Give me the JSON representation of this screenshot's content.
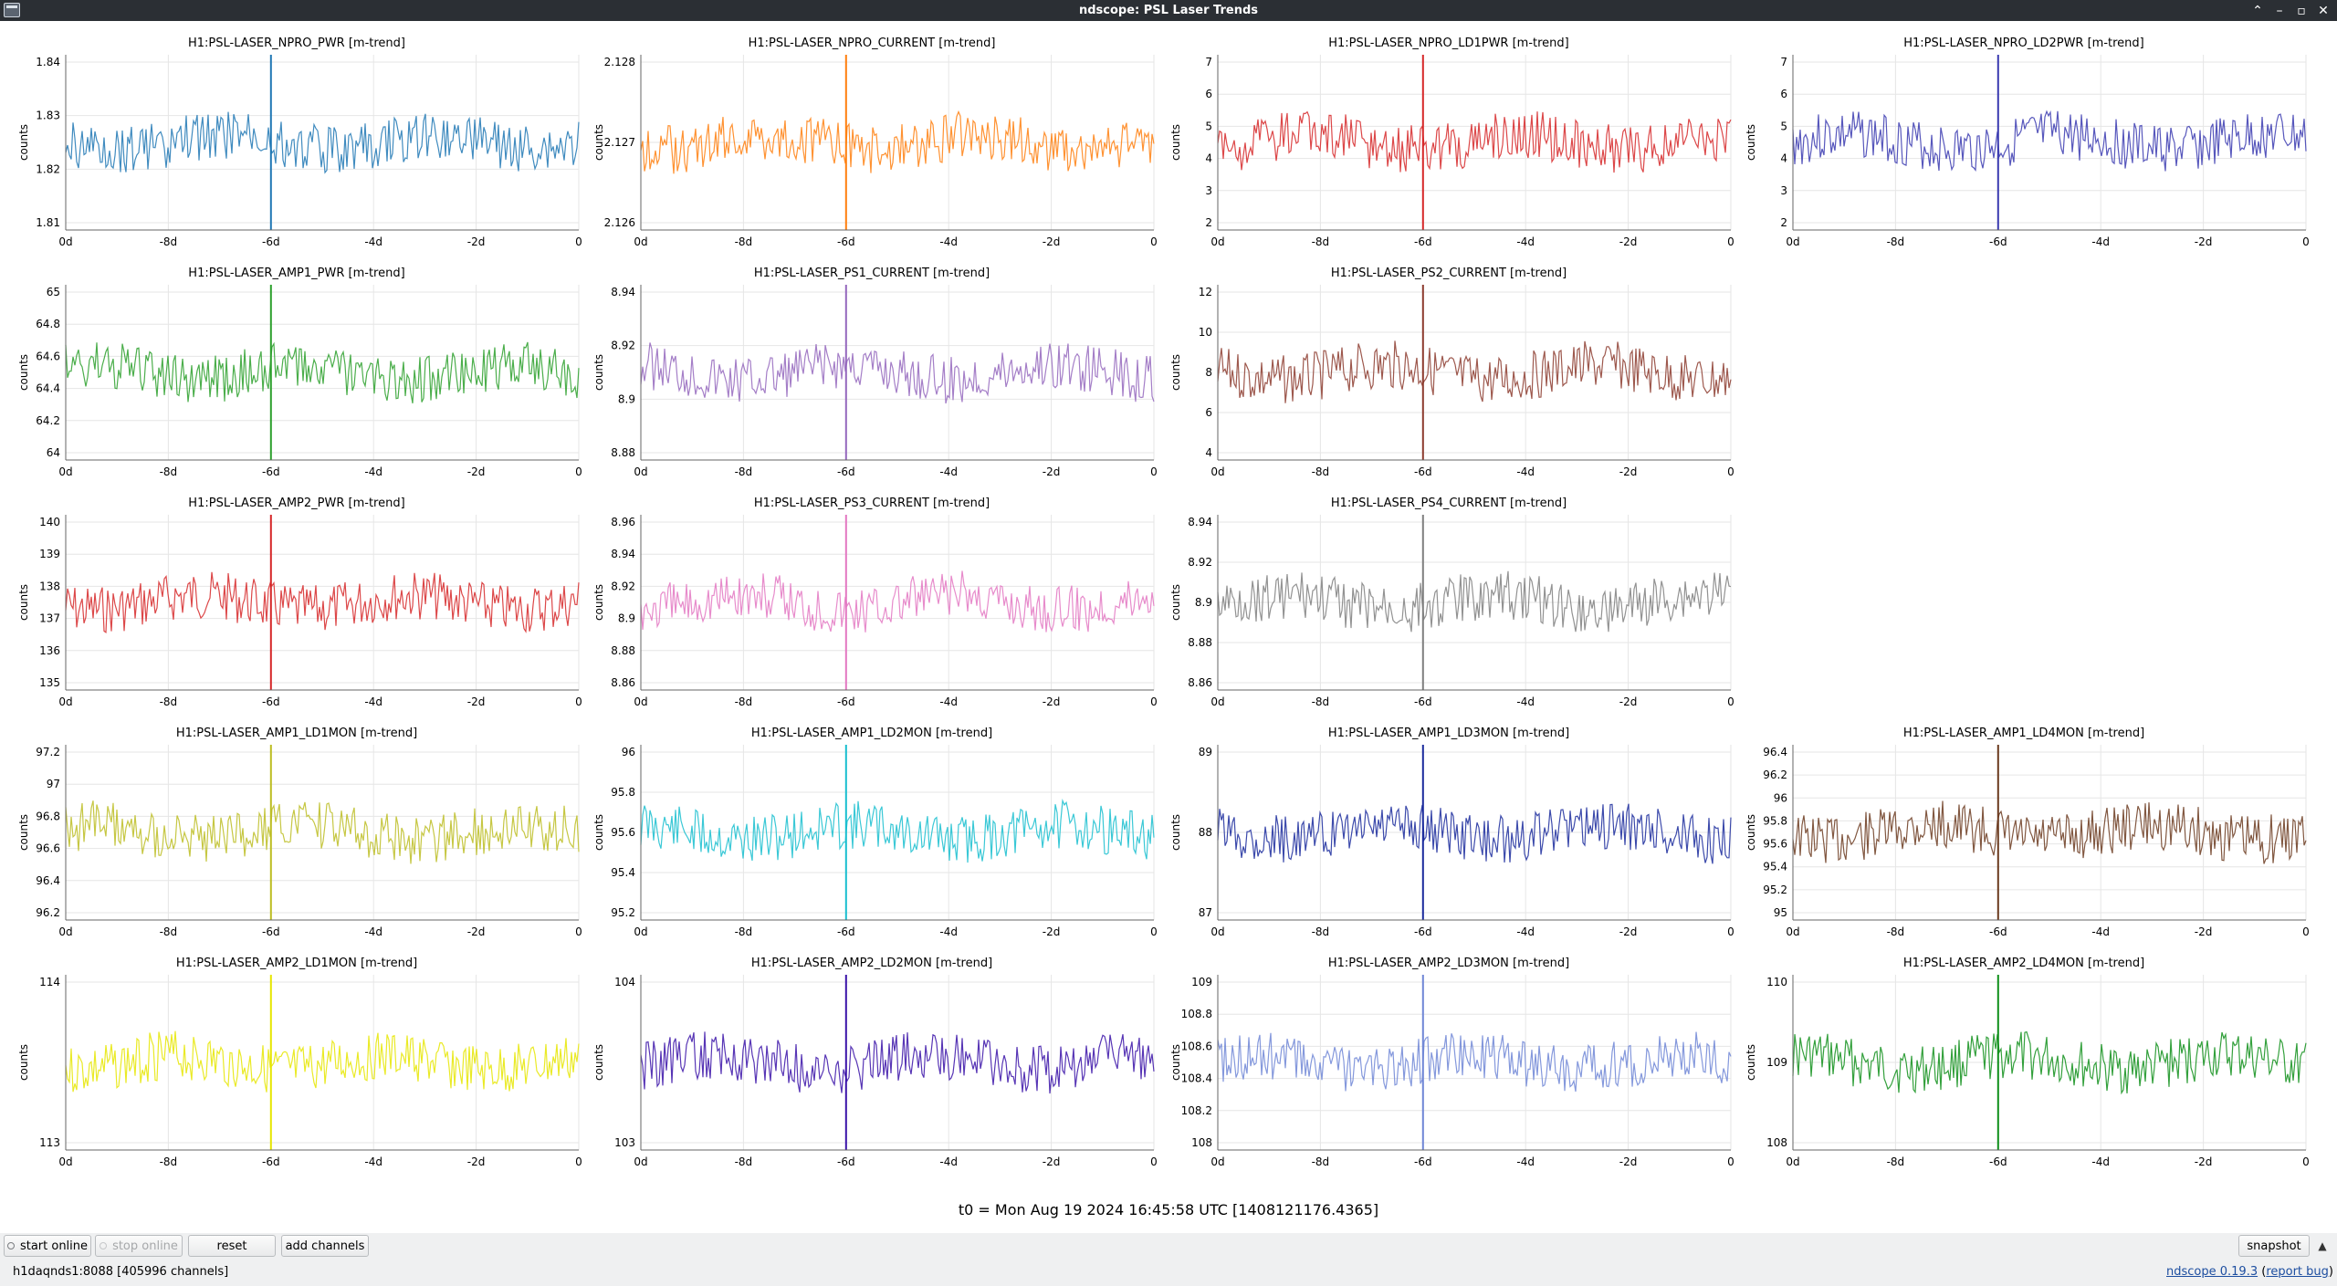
{
  "window": {
    "title": "ndscope: PSL Laser Trends",
    "controls": [
      {
        "name": "restore-icon",
        "glyph": "⌃"
      },
      {
        "name": "minimize-icon",
        "glyph": "–"
      },
      {
        "name": "maximize-icon",
        "glyph": "▫"
      },
      {
        "name": "close-icon",
        "glyph": "✕"
      }
    ]
  },
  "plots": [
    {
      "id": "npro-pwr",
      "title": "H1:PSL-LASER_NPRO_PWR [m-trend]",
      "ylabel": "counts",
      "color": "#1f77b4",
      "yticks": [
        "1.84",
        "1.83",
        "1.82",
        "1.81"
      ],
      "xticks": [
        "0d",
        "-8d",
        "-6d",
        "-4d",
        "-2d",
        "0"
      ]
    },
    {
      "id": "npro-current",
      "title": "H1:PSL-LASER_NPRO_CURRENT [m-trend]",
      "ylabel": "counts",
      "color": "#ff7f0e",
      "yticks": [
        "2.128",
        "2.127",
        "2.126"
      ],
      "xticks": [
        "0d",
        "-8d",
        "-6d",
        "-4d",
        "-2d",
        "0"
      ]
    },
    {
      "id": "npro-ld1pwr",
      "title": "H1:PSL-LASER_NPRO_LD1PWR [m-trend]",
      "ylabel": "counts",
      "color": "#d62728",
      "yticks": [
        "7",
        "6",
        "5",
        "4",
        "3",
        "2"
      ],
      "xticks": [
        "0d",
        "-8d",
        "-6d",
        "-4d",
        "-2d",
        "0"
      ]
    },
    {
      "id": "npro-ld2pwr",
      "title": "H1:PSL-LASER_NPRO_LD2PWR [m-trend]",
      "ylabel": "counts",
      "color": "#3a3ab0",
      "yticks": [
        "7",
        "6",
        "5",
        "4",
        "3",
        "2"
      ],
      "xticks": [
        "0d",
        "-8d",
        "-6d",
        "-4d",
        "-2d",
        "0"
      ]
    },
    {
      "id": "amp1-pwr",
      "title": "H1:PSL-LASER_AMP1_PWR [m-trend]",
      "ylabel": "counts",
      "color": "#2ca02c",
      "yticks": [
        "65",
        "64.8",
        "64.6",
        "64.4",
        "64.2",
        "64"
      ],
      "xticks": [
        "0d",
        "-8d",
        "-6d",
        "-4d",
        "-2d",
        "0"
      ]
    },
    {
      "id": "ps1-current",
      "title": "H1:PSL-LASER_PS1_CURRENT [m-trend]",
      "ylabel": "counts",
      "color": "#9467bd",
      "yticks": [
        "8.94",
        "8.92",
        "8.9",
        "8.88"
      ],
      "xticks": [
        "0d",
        "-8d",
        "-6d",
        "-4d",
        "-2d",
        "0"
      ]
    },
    {
      "id": "ps2-current",
      "title": "H1:PSL-LASER_PS2_CURRENT [m-trend]",
      "ylabel": "counts",
      "color": "#8c3b2e",
      "yticks": [
        "12",
        "10",
        "8",
        "6",
        "4"
      ],
      "xticks": [
        "0d",
        "-8d",
        "-6d",
        "-4d",
        "-2d",
        "0"
      ]
    },
    {
      "id": "amp2-pwr",
      "title": "H1:PSL-LASER_AMP2_PWR [m-trend]",
      "ylabel": "counts",
      "color": "#d62728",
      "yticks": [
        "140",
        "139",
        "138",
        "137",
        "136",
        "135"
      ],
      "xticks": [
        "0d",
        "-8d",
        "-6d",
        "-4d",
        "-2d",
        "0"
      ]
    },
    {
      "id": "ps3-current",
      "title": "H1:PSL-LASER_PS3_CURRENT [m-trend]",
      "ylabel": "counts",
      "color": "#e377c2",
      "yticks": [
        "8.96",
        "8.94",
        "8.92",
        "8.9",
        "8.88",
        "8.86"
      ],
      "xticks": [
        "0d",
        "-8d",
        "-6d",
        "-4d",
        "-2d",
        "0"
      ]
    },
    {
      "id": "ps4-current",
      "title": "H1:PSL-LASER_PS4_CURRENT [m-trend]",
      "ylabel": "counts",
      "color": "#7f7f7f",
      "yticks": [
        "8.94",
        "8.92",
        "8.9",
        "8.88",
        "8.86"
      ],
      "xticks": [
        "0d",
        "-8d",
        "-6d",
        "-4d",
        "-2d",
        "0"
      ]
    },
    {
      "id": "amp1-ld1mon",
      "title": "H1:PSL-LASER_AMP1_LD1MON [m-trend]",
      "ylabel": "counts",
      "color": "#bcbd22",
      "yticks": [
        "97.2",
        "97",
        "96.8",
        "96.6",
        "96.4",
        "96.2"
      ],
      "xticks": [
        "0d",
        "-8d",
        "-6d",
        "-4d",
        "-2d",
        "0"
      ]
    },
    {
      "id": "amp1-ld2mon",
      "title": "H1:PSL-LASER_AMP1_LD2MON [m-trend]",
      "ylabel": "counts",
      "color": "#17becf",
      "yticks": [
        "96",
        "95.8",
        "95.6",
        "95.4",
        "95.2"
      ],
      "xticks": [
        "0d",
        "-8d",
        "-6d",
        "-4d",
        "-2d",
        "0"
      ]
    },
    {
      "id": "amp1-ld3mon",
      "title": "H1:PSL-LASER_AMP1_LD3MON [m-trend]",
      "ylabel": "counts",
      "color": "#1a2a9c",
      "yticks": [
        "89",
        "88",
        "87"
      ],
      "xticks": [
        "0d",
        "-8d",
        "-6d",
        "-4d",
        "-2d",
        "0"
      ]
    },
    {
      "id": "amp1-ld4mon",
      "title": "H1:PSL-LASER_AMP1_LD4MON [m-trend]",
      "ylabel": "counts",
      "color": "#6b3a1e",
      "yticks": [
        "96.4",
        "96.2",
        "96",
        "95.8",
        "95.6",
        "95.4",
        "95.2",
        "95"
      ],
      "xticks": [
        "0d",
        "-8d",
        "-6d",
        "-4d",
        "-2d",
        "0"
      ]
    },
    {
      "id": "amp2-ld1mon",
      "title": "H1:PSL-LASER_AMP2_LD1MON [m-trend]",
      "ylabel": "counts",
      "color": "#e6e600",
      "yticks": [
        "114",
        "113"
      ],
      "xticks": [
        "0d",
        "-8d",
        "-6d",
        "-4d",
        "-2d",
        "0"
      ]
    },
    {
      "id": "amp2-ld2mon",
      "title": "H1:PSL-LASER_AMP2_LD2MON [m-trend]",
      "ylabel": "counts",
      "color": "#3a12a8",
      "yticks": [
        "104",
        "103"
      ],
      "xticks": [
        "0d",
        "-8d",
        "-6d",
        "-4d",
        "-2d",
        "0"
      ]
    },
    {
      "id": "amp2-ld3mon",
      "title": "H1:PSL-LASER_AMP2_LD3MON [m-trend]",
      "ylabel": "counts",
      "color": "#6f86d6",
      "yticks": [
        "109",
        "108.8",
        "108.6",
        "108.4",
        "108.2",
        "108"
      ],
      "xticks": [
        "0d",
        "-8d",
        "-6d",
        "-4d",
        "-2d",
        "0"
      ]
    },
    {
      "id": "amp2-ld4mon",
      "title": "H1:PSL-LASER_AMP2_LD4MON [m-trend]",
      "ylabel": "counts",
      "color": "#0f8f1a",
      "yticks": [
        "110",
        "109",
        "108"
      ],
      "xticks": [
        "0d",
        "-8d",
        "-6d",
        "-4d",
        "-2d",
        "0"
      ]
    }
  ],
  "t0_label": "t0 = Mon Aug 19 2024 16:45:58 UTC [1408121176.4365]",
  "buttons": {
    "start_online": "start online",
    "stop_online": "stop online",
    "reset": "reset",
    "add_channels": "add channels",
    "snapshot": "snapshot"
  },
  "status": {
    "server": "h1daqnds1:8088",
    "channels": "[405996 channels]",
    "version_link": "ndscope 0.19.3",
    "report_bug": "report bug"
  }
}
